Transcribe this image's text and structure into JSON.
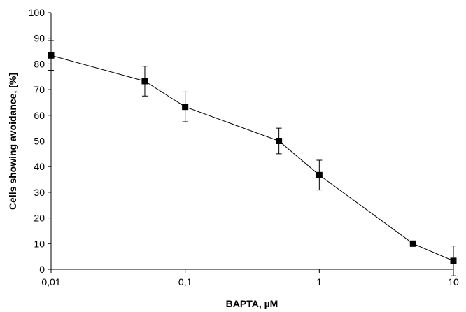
{
  "chart_data": {
    "type": "line",
    "title": "",
    "xlabel": "BAPTA, µM",
    "ylabel": "Cells showing avoidance, [%]",
    "xscale": "log",
    "xlim": [
      0.01,
      10
    ],
    "ylim": [
      0,
      100
    ],
    "x_ticks": [
      0.01,
      0.1,
      1,
      10
    ],
    "x_tick_labels": [
      "0,01",
      "0,1",
      "1",
      "10"
    ],
    "y_ticks": [
      0,
      10,
      20,
      30,
      40,
      50,
      60,
      70,
      80,
      90,
      100
    ],
    "y_tick_labels": [
      "0",
      "10",
      "20",
      "30",
      "40",
      "50",
      "60",
      "70",
      "80",
      "90",
      "100"
    ],
    "grid": false,
    "legend": false,
    "marker": "square",
    "color": "#000000",
    "series": [
      {
        "x": [
          0.01,
          0.05,
          0.1,
          0.5,
          1,
          5,
          10
        ],
        "y": [
          83.3,
          73.3,
          63.3,
          50.0,
          36.7,
          10.0,
          3.3
        ],
        "error": [
          5.8,
          5.8,
          5.8,
          5.0,
          5.8,
          0,
          5.8
        ]
      }
    ]
  }
}
